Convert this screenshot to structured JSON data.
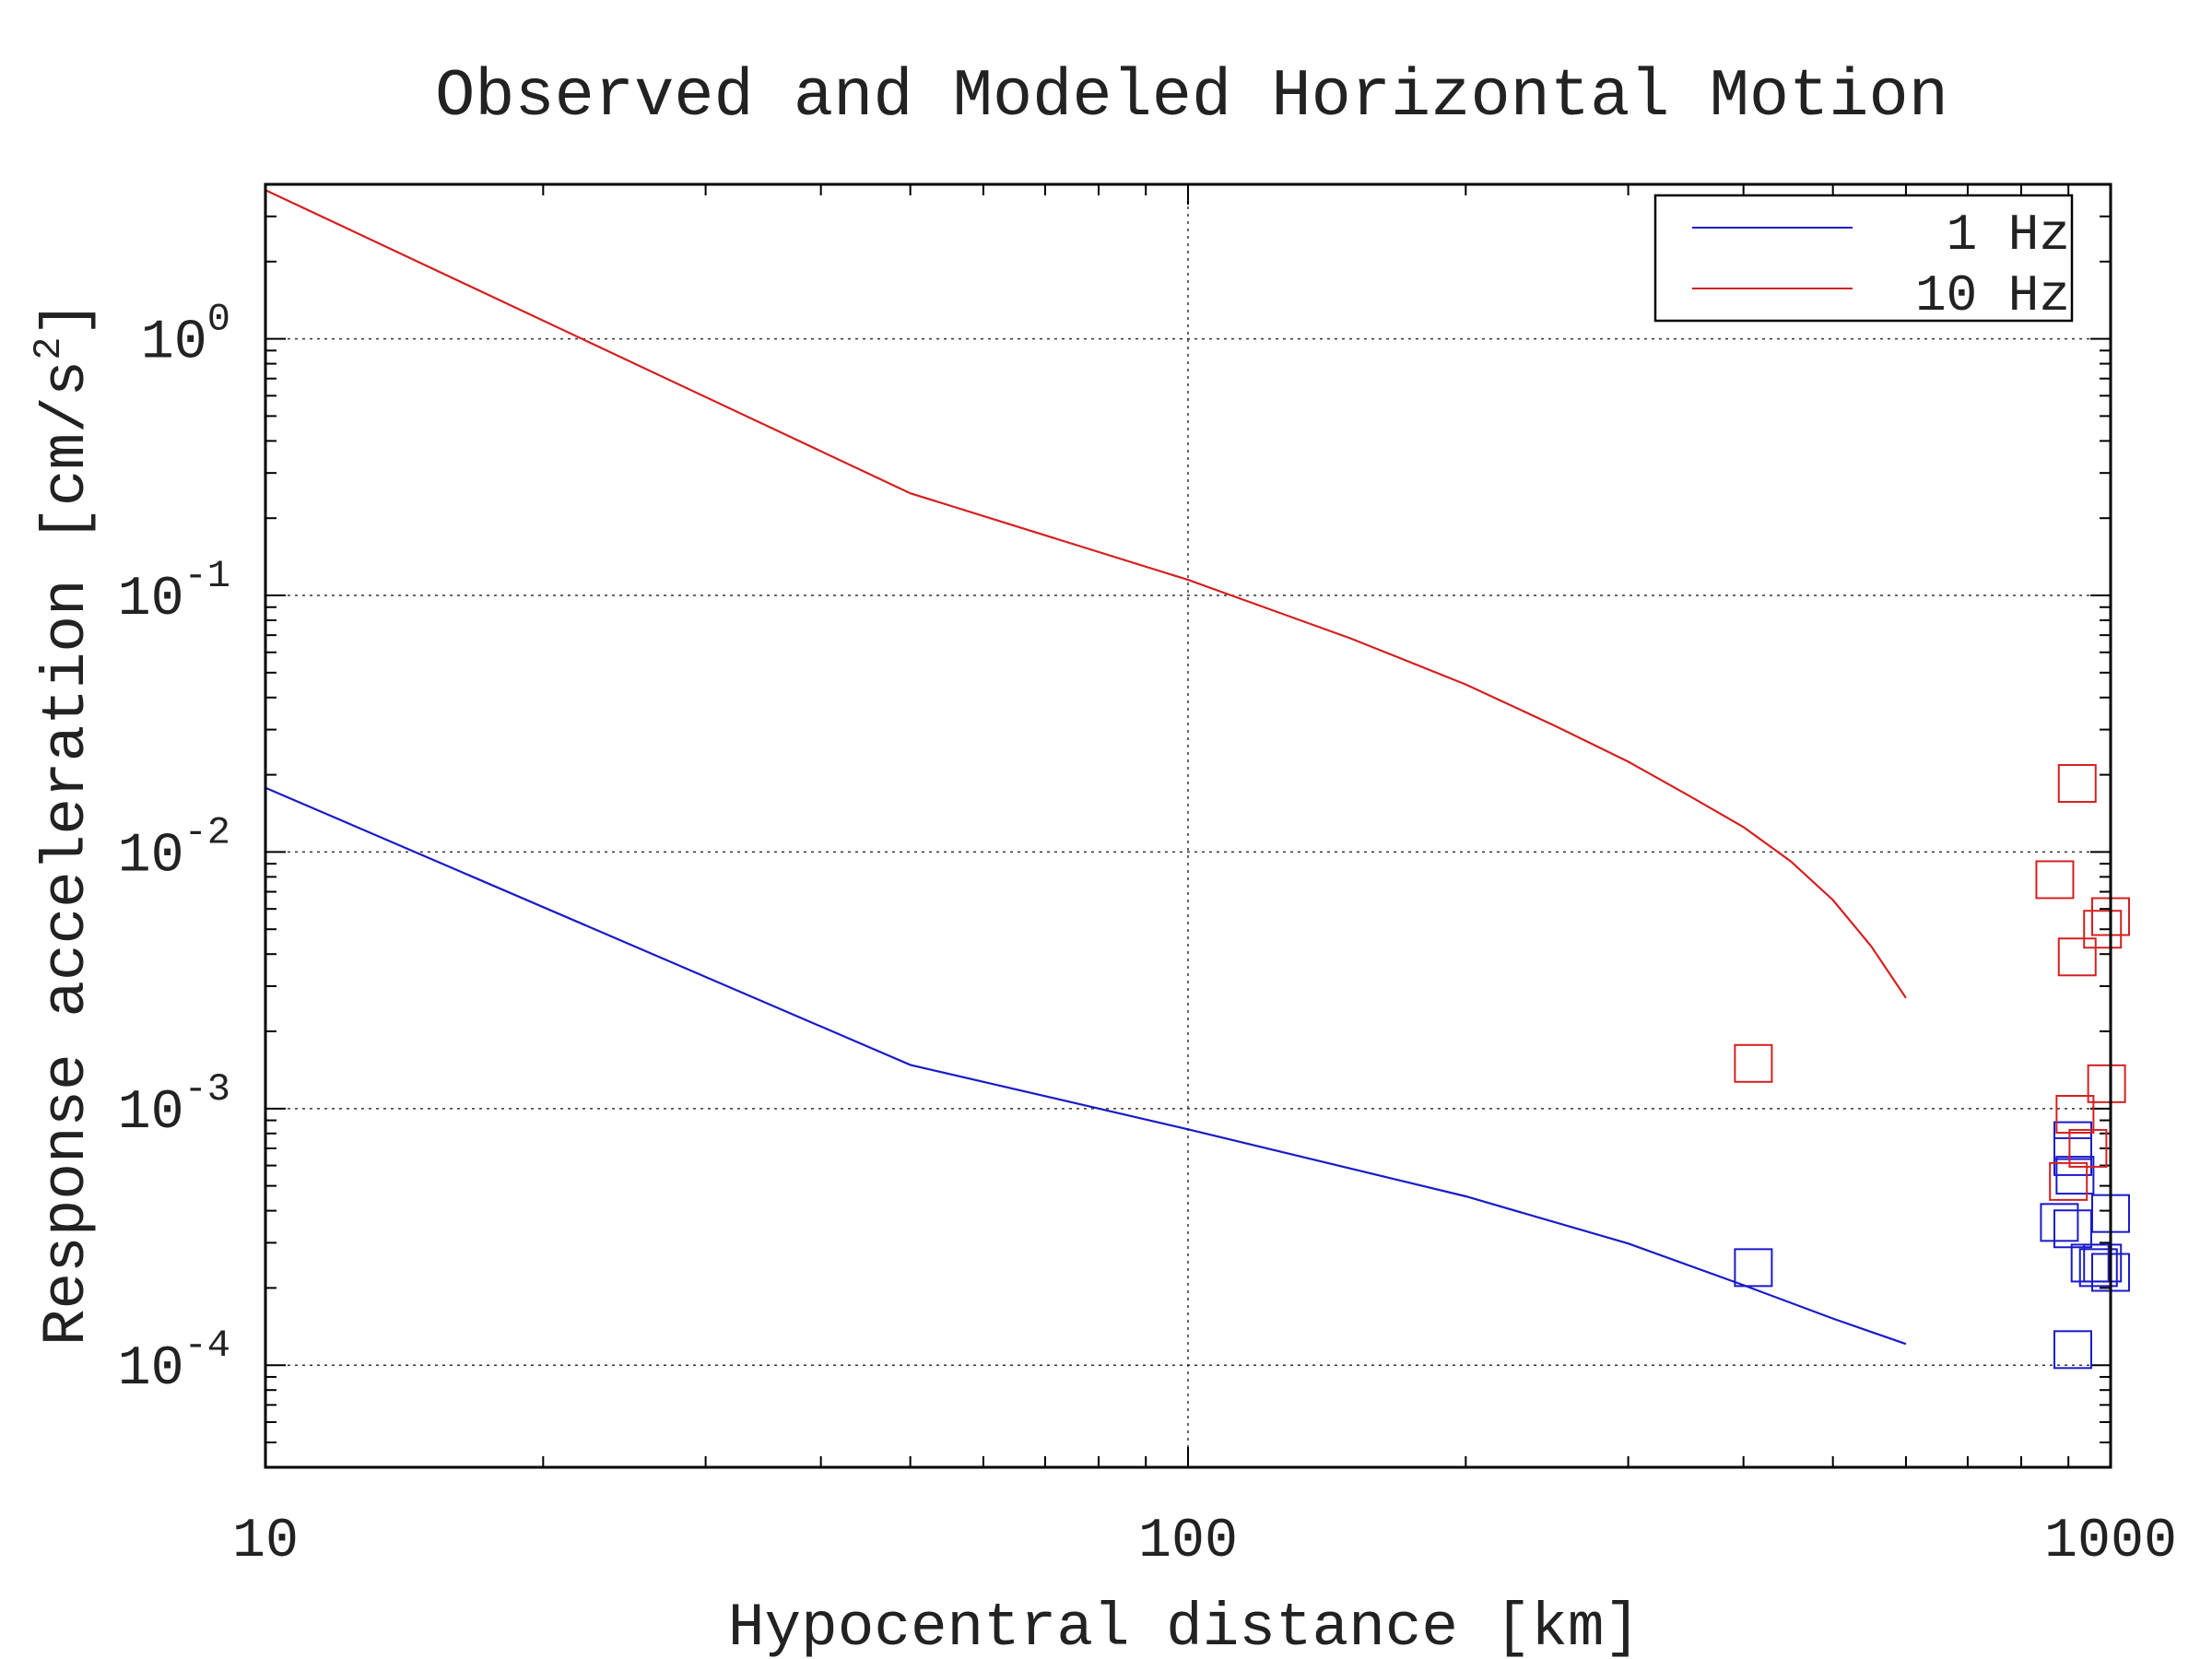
{
  "chart_data": {
    "type": "line",
    "title": "Observed and Modeled Horizontal Motion",
    "xlabel": "Hypocentral distance [km]",
    "ylabel": "Response acceleration [cm/s²]",
    "ylabel_main": "Response acceleration [cm/s",
    "ylabel_sup": "2",
    "ylabel_close": "]",
    "x_scale": "log",
    "y_scale": "log",
    "xlim": [
      10,
      1000
    ],
    "ylim": [
      4e-05,
      4.0
    ],
    "grid": true,
    "legend_position": "top-right",
    "x_ticks": [
      {
        "value": 10,
        "label": "10"
      },
      {
        "value": 100,
        "label": "100"
      },
      {
        "value": 1000,
        "label": "1000"
      }
    ],
    "y_ticks": [
      {
        "value": 1,
        "base": "10",
        "exp": "0"
      },
      {
        "value": 0.1,
        "base": "10",
        "exp": "-1"
      },
      {
        "value": 0.01,
        "base": "10",
        "exp": "-2"
      },
      {
        "value": 0.001,
        "base": "10",
        "exp": "-3"
      },
      {
        "value": 0.0001,
        "base": "10",
        "exp": "-4"
      }
    ],
    "series": [
      {
        "name": "1 Hz",
        "color": "#1a1ac8",
        "type": "line",
        "x": [
          10,
          50,
          100,
          200,
          300,
          400,
          500,
          600
        ],
        "y": [
          0.0178,
          0.00148,
          0.00083,
          0.000455,
          0.000298,
          0.000205,
          0.000152,
          0.000121
        ]
      },
      {
        "name": "10 Hz",
        "color": "#d42020",
        "type": "line",
        "x": [
          10,
          50,
          100,
          150,
          200,
          250,
          300,
          350,
          400,
          450,
          500,
          550,
          600
        ],
        "y": [
          3.8,
          0.25,
          0.115,
          0.068,
          0.045,
          0.031,
          0.0225,
          0.0165,
          0.0125,
          0.0092,
          0.0065,
          0.0043,
          0.0027
        ]
      }
    ],
    "observations": [
      {
        "series": "1 Hz",
        "color": "#1a1ac8",
        "x": [
          410,
          910,
          915,
          910,
          880,
          910,
          950,
          980,
          1000,
          970,
          1000,
          910
        ],
        "y": [
          0.00024,
          0.00075,
          0.00055,
          0.00065,
          0.00036,
          0.00034,
          0.00025,
          0.00025,
          0.00039,
          0.00024,
          0.00023,
          0.000115
        ]
      },
      {
        "series": "10 Hz",
        "color": "#d42020",
        "x": [
          410,
          920,
          870,
          1000,
          980,
          920,
          990,
          915,
          945,
          900
        ],
        "y": [
          0.0015,
          0.0185,
          0.0078,
          0.0056,
          0.005,
          0.0039,
          0.00125,
          0.00095,
          0.0007,
          0.00052
        ]
      }
    ]
  }
}
